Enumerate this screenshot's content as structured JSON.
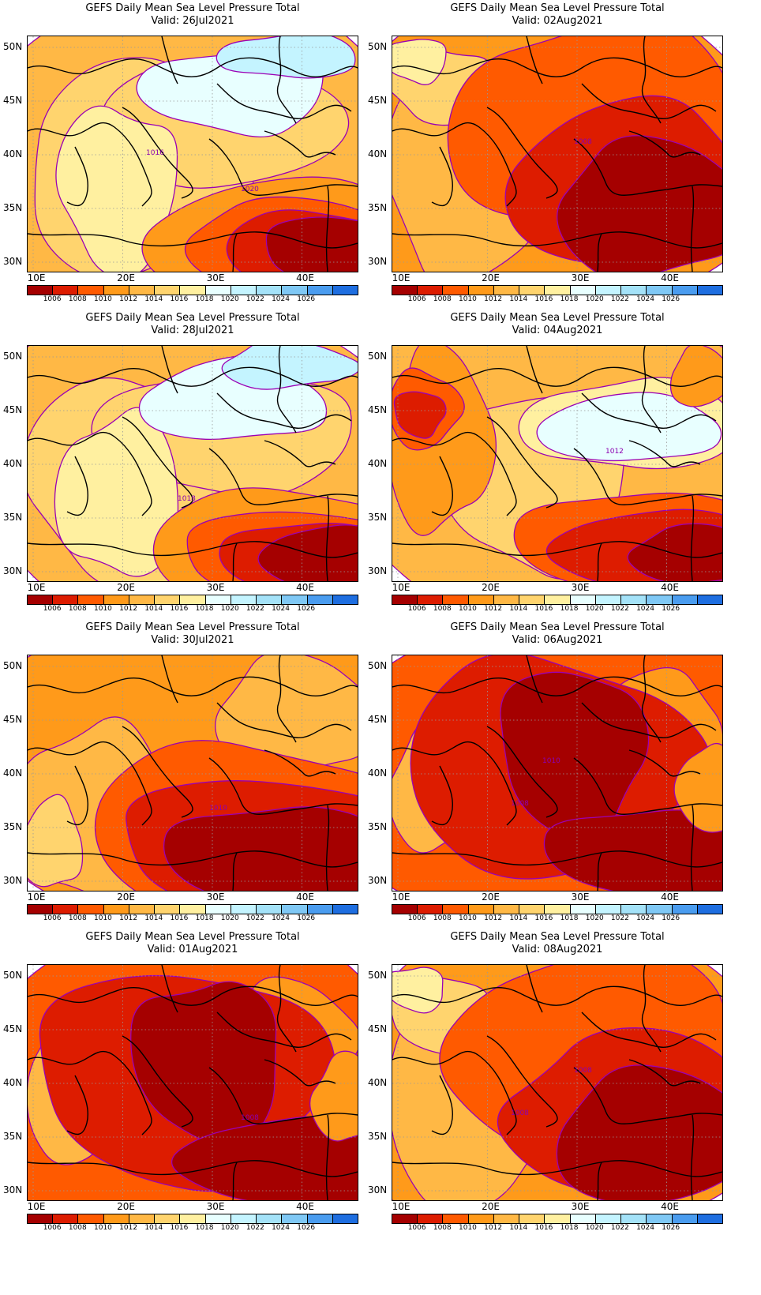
{
  "colorbar": {
    "colors": [
      "#a50000",
      "#dd1c00",
      "#ff5a00",
      "#ff9a1a",
      "#ffb845",
      "#ffd46e",
      "#fff0a0",
      "#e8ffff",
      "#c4f4ff",
      "#a4e2f8",
      "#7fc8f5",
      "#4a9cef",
      "#1e6ee0"
    ],
    "labels": [
      "1006",
      "1008",
      "1010",
      "1012",
      "1014",
      "1016",
      "1018",
      "1020",
      "1022",
      "1024",
      "1026"
    ]
  },
  "contour_color": "#9b00b4",
  "axes": {
    "lat_labels": [
      "50N",
      "45N",
      "40N",
      "35N",
      "30N"
    ],
    "lon_labels": [
      "10E",
      "20E",
      "30E",
      "40E"
    ]
  },
  "panels": [
    {
      "title": "GEFS Daily Mean Sea Level Pressure Total",
      "valid": "Valid: 26Jul2021",
      "pattern": "high-north",
      "contour_label": "1020",
      "contour_label2": "1016"
    },
    {
      "title": "GEFS Daily Mean Sea Level Pressure Total",
      "valid": "Valid: 02Aug2021",
      "pattern": "low-east",
      "contour_label": "1008",
      "contour_label2": ""
    },
    {
      "title": "GEFS Daily Mean Sea Level Pressure Total",
      "valid": "Valid: 28Jul2021",
      "pattern": "high-north",
      "contour_label": "1018",
      "contour_label2": ""
    },
    {
      "title": "GEFS Daily Mean Sea Level Pressure Total",
      "valid": "Valid: 04Aug2021",
      "pattern": "mixed",
      "contour_label": "1012",
      "contour_label2": ""
    },
    {
      "title": "GEFS Daily Mean Sea Level Pressure Total",
      "valid": "Valid: 30Jul2021",
      "pattern": "low-southeast",
      "contour_label": "1010",
      "contour_label2": ""
    },
    {
      "title": "GEFS Daily Mean Sea Level Pressure Total",
      "valid": "Valid: 06Aug2021",
      "pattern": "deep-low",
      "contour_label": "1010",
      "contour_label2": "1008"
    },
    {
      "title": "GEFS Daily Mean Sea Level Pressure Total",
      "valid": "Valid: 01Aug2021",
      "pattern": "deep-low",
      "contour_label": "1008",
      "contour_label2": ""
    },
    {
      "title": "GEFS Daily Mean Sea Level Pressure Total",
      "valid": "Valid: 08Aug2021",
      "pattern": "low-east",
      "contour_label": "1008",
      "contour_label2": "1008"
    }
  ]
}
